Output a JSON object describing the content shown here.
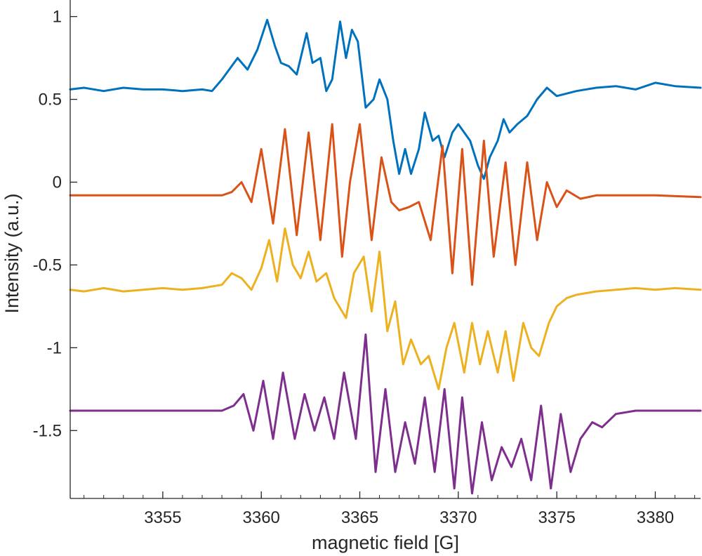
{
  "chart_data": {
    "type": "line",
    "title": "",
    "xlabel": "magnetic field [G]",
    "ylabel": "Intensity (a.u.)",
    "xlim": [
      3350.3,
      3382.3
    ],
    "ylim": [
      -1.91,
      1.1
    ],
    "xticks": [
      3355,
      3360,
      3365,
      3370,
      3375,
      3380
    ],
    "xtick_labels": [
      "3355",
      "3360",
      "3365",
      "3370",
      "3375",
      "3380"
    ],
    "yticks": [
      1,
      0.5,
      0,
      -0.5,
      -1,
      -1.5
    ],
    "ytick_labels": [
      "1",
      "0.5",
      "0",
      "-0.5",
      "-1",
      "-1.5"
    ],
    "grid": false,
    "legend": "none",
    "series": [
      {
        "color": "#0072BD",
        "x": [
          3350.3,
          3351,
          3352,
          3353,
          3354,
          3355,
          3356,
          3357,
          3357.5,
          3358,
          3358.8,
          3359.3,
          3359.8,
          3360.3,
          3360.7,
          3361,
          3361.4,
          3361.8,
          3362.3,
          3362.6,
          3363,
          3363.3,
          3363.6,
          3364,
          3364.3,
          3364.6,
          3364.9,
          3365.3,
          3365.7,
          3366,
          3366.4,
          3366.7,
          3367,
          3367.3,
          3367.6,
          3368,
          3368.3,
          3368.7,
          3369,
          3369.3,
          3369.7,
          3370,
          3370.3,
          3370.6,
          3371,
          3371.3,
          3371.6,
          3372,
          3372.3,
          3372.6,
          3373,
          3373.5,
          3374,
          3374.5,
          3375,
          3376,
          3377,
          3378,
          3379,
          3380,
          3381,
          3382.3
        ],
        "y": [
          0.56,
          0.57,
          0.55,
          0.57,
          0.56,
          0.56,
          0.55,
          0.56,
          0.55,
          0.62,
          0.75,
          0.68,
          0.8,
          0.98,
          0.82,
          0.72,
          0.7,
          0.65,
          0.9,
          0.72,
          0.75,
          0.55,
          0.62,
          0.97,
          0.75,
          0.92,
          0.85,
          0.45,
          0.5,
          0.62,
          0.5,
          0.25,
          0.05,
          0.2,
          0.05,
          0.2,
          0.42,
          0.25,
          0.28,
          0.15,
          0.3,
          0.35,
          0.3,
          0.25,
          0.1,
          0.02,
          0.15,
          0.25,
          0.38,
          0.3,
          0.35,
          0.4,
          0.5,
          0.57,
          0.52,
          0.55,
          0.57,
          0.58,
          0.56,
          0.6,
          0.58,
          0.57
        ]
      },
      {
        "color": "#D95319",
        "x": [
          3350.3,
          3352,
          3354,
          3356,
          3358,
          3358.5,
          3359,
          3359.5,
          3360,
          3360.6,
          3361.2,
          3361.8,
          3362.4,
          3363,
          3363.6,
          3364.1,
          3364.5,
          3365,
          3365.6,
          3366.1,
          3366.6,
          3367,
          3367.5,
          3368,
          3368.6,
          3369.2,
          3369.7,
          3370.2,
          3370.7,
          3371.3,
          3371.8,
          3372.4,
          3372.9,
          3373.5,
          3374,
          3374.5,
          3375,
          3375.5,
          3376.2,
          3377,
          3378,
          3380,
          3382.3
        ],
        "y": [
          -0.08,
          -0.08,
          -0.08,
          -0.08,
          -0.08,
          -0.06,
          0.0,
          -0.12,
          0.2,
          -0.25,
          0.32,
          -0.32,
          0.3,
          -0.35,
          0.35,
          -0.45,
          0.0,
          0.35,
          -0.35,
          0.15,
          -0.12,
          -0.17,
          -0.15,
          -0.12,
          -0.35,
          0.22,
          -0.55,
          0.2,
          -0.62,
          0.25,
          -0.45,
          0.12,
          -0.5,
          0.12,
          -0.35,
          0.0,
          -0.15,
          -0.05,
          -0.1,
          -0.08,
          -0.08,
          -0.08,
          -0.09
        ]
      },
      {
        "color": "#EDB120",
        "x": [
          3350.3,
          3351,
          3352,
          3353,
          3354,
          3355,
          3356,
          3357,
          3358,
          3358.5,
          3359,
          3359.5,
          3360,
          3360.4,
          3360.8,
          3361.2,
          3361.6,
          3362,
          3362.4,
          3362.8,
          3363.3,
          3363.7,
          3364.3,
          3364.7,
          3365.2,
          3365.6,
          3366,
          3366.4,
          3366.8,
          3367.2,
          3367.6,
          3368.1,
          3368.5,
          3369,
          3369.4,
          3369.8,
          3370.3,
          3370.7,
          3371.1,
          3371.5,
          3372,
          3372.4,
          3372.8,
          3373.3,
          3373.7,
          3374.1,
          3374.6,
          3375,
          3375.5,
          3376,
          3377,
          3378,
          3379,
          3380,
          3381,
          3382.3
        ],
        "y": [
          -0.65,
          -0.66,
          -0.64,
          -0.66,
          -0.65,
          -0.64,
          -0.65,
          -0.64,
          -0.62,
          -0.55,
          -0.58,
          -0.65,
          -0.52,
          -0.35,
          -0.6,
          -0.28,
          -0.5,
          -0.58,
          -0.42,
          -0.6,
          -0.55,
          -0.7,
          -0.82,
          -0.55,
          -0.45,
          -0.78,
          -0.42,
          -0.9,
          -0.72,
          -1.1,
          -0.95,
          -1.1,
          -1.05,
          -1.25,
          -1.0,
          -0.85,
          -1.15,
          -0.85,
          -1.1,
          -0.9,
          -1.15,
          -0.9,
          -1.2,
          -0.85,
          -1.0,
          -1.05,
          -0.85,
          -0.75,
          -0.7,
          -0.68,
          -0.66,
          -0.65,
          -0.64,
          -0.65,
          -0.64,
          -0.65
        ]
      },
      {
        "color": "#7E2F8E",
        "x": [
          3350.3,
          3352,
          3354,
          3356,
          3358,
          3358.6,
          3359.1,
          3359.6,
          3360.1,
          3360.6,
          3361.1,
          3361.7,
          3362.2,
          3362.7,
          3363.2,
          3363.7,
          3364.2,
          3364.8,
          3365.3,
          3365.8,
          3366.3,
          3366.8,
          3367.3,
          3367.8,
          3368.3,
          3368.8,
          3369.3,
          3369.8,
          3370.2,
          3370.7,
          3371.2,
          3371.7,
          3372.2,
          3372.7,
          3373.2,
          3373.7,
          3374.2,
          3374.7,
          3375.2,
          3375.7,
          3376.2,
          3376.8,
          3377.3,
          3378,
          3379,
          3380,
          3381,
          3382.3
        ],
        "y": [
          -1.38,
          -1.38,
          -1.38,
          -1.38,
          -1.38,
          -1.35,
          -1.28,
          -1.5,
          -1.2,
          -1.55,
          -1.15,
          -1.55,
          -1.28,
          -1.5,
          -1.3,
          -1.55,
          -1.15,
          -1.55,
          -0.92,
          -1.75,
          -1.25,
          -1.75,
          -1.45,
          -1.7,
          -1.3,
          -1.75,
          -1.25,
          -1.85,
          -1.3,
          -1.88,
          -1.45,
          -1.8,
          -1.6,
          -1.72,
          -1.55,
          -1.8,
          -1.35,
          -1.85,
          -1.4,
          -1.75,
          -1.55,
          -1.45,
          -1.48,
          -1.4,
          -1.38,
          -1.38,
          -1.38,
          -1.38
        ]
      }
    ]
  }
}
